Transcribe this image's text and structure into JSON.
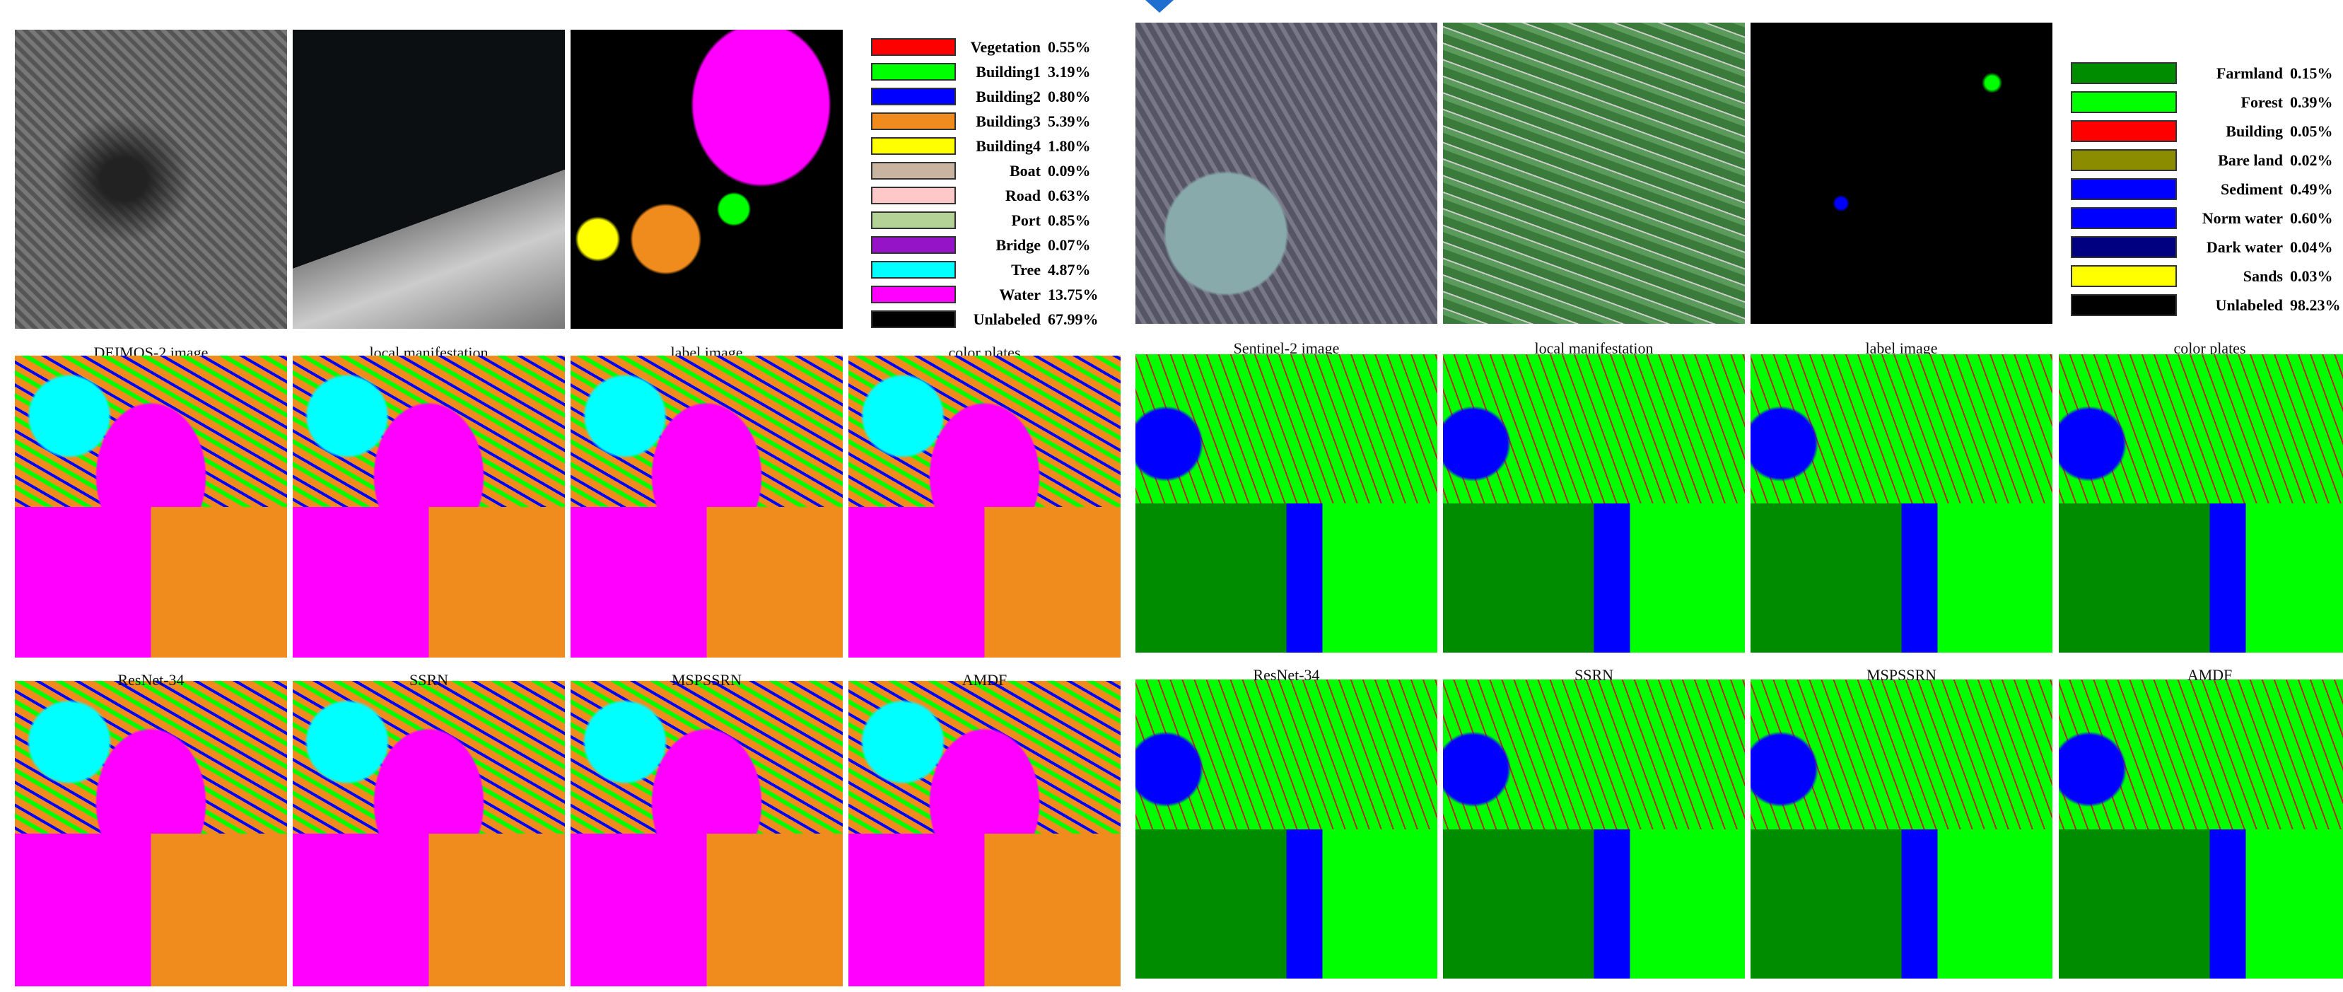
{
  "left": {
    "captions": [
      "DEIMOS-2 image",
      "local manifestation",
      "label image"
    ],
    "legend": {
      "caption": "color plates",
      "items": [
        {
          "name": "Vegetation",
          "percent": "0.55%",
          "color": "#ff0000"
        },
        {
          "name": "Building1",
          "percent": "3.19%",
          "color": "#00ff00"
        },
        {
          "name": "Building2",
          "percent": "0.80%",
          "color": "#0000ff"
        },
        {
          "name": "Building3",
          "percent": "5.39%",
          "color": "#f08c1e"
        },
        {
          "name": "Building4",
          "percent": "1.80%",
          "color": "#ffff00"
        },
        {
          "name": "Boat",
          "percent": "0.09%",
          "color": "#c8b4a0"
        },
        {
          "name": "Road",
          "percent": "0.63%",
          "color": "#ffc8c8"
        },
        {
          "name": "Port",
          "percent": "0.85%",
          "color": "#b4d296"
        },
        {
          "name": "Bridge",
          "percent": "0.07%",
          "color": "#9614c8"
        },
        {
          "name": "Tree",
          "percent": "4.87%",
          "color": "#00ffff"
        },
        {
          "name": "Water",
          "percent": "13.75%",
          "color": "#ff00ff"
        },
        {
          "name": "Unlabeled",
          "percent": "67.99%",
          "color": "#000000"
        }
      ]
    },
    "methods": [
      "ResNet-34",
      "SSRN",
      "MSPSSRN",
      "AMDF"
    ]
  },
  "right": {
    "captions": [
      "Sentinel-2 image",
      "local manifestation",
      "label image"
    ],
    "legend": {
      "caption": "color plates",
      "items": [
        {
          "name": "Farmland",
          "percent": "0.15%",
          "color": "#008c00"
        },
        {
          "name": "Forest",
          "percent": "0.39%",
          "color": "#00ff00"
        },
        {
          "name": "Building",
          "percent": "0.05%",
          "color": "#ff0000"
        },
        {
          "name": "Bare land",
          "percent": "0.02%",
          "color": "#8c8c00"
        },
        {
          "name": "Sediment",
          "percent": "0.49%",
          "color": "#0000ff"
        },
        {
          "name": "Norm water",
          "percent": "0.60%",
          "color": "#0000ff"
        },
        {
          "name": "Dark water",
          "percent": "0.04%",
          "color": "#000080"
        },
        {
          "name": "Sands",
          "percent": "0.03%",
          "color": "#ffff00"
        },
        {
          "name": "Unlabeled",
          "percent": "98.23%",
          "color": "#000000"
        }
      ]
    },
    "methods": [
      "ResNet-34",
      "SSRN",
      "MSPSSRN",
      "AMDF"
    ]
  }
}
